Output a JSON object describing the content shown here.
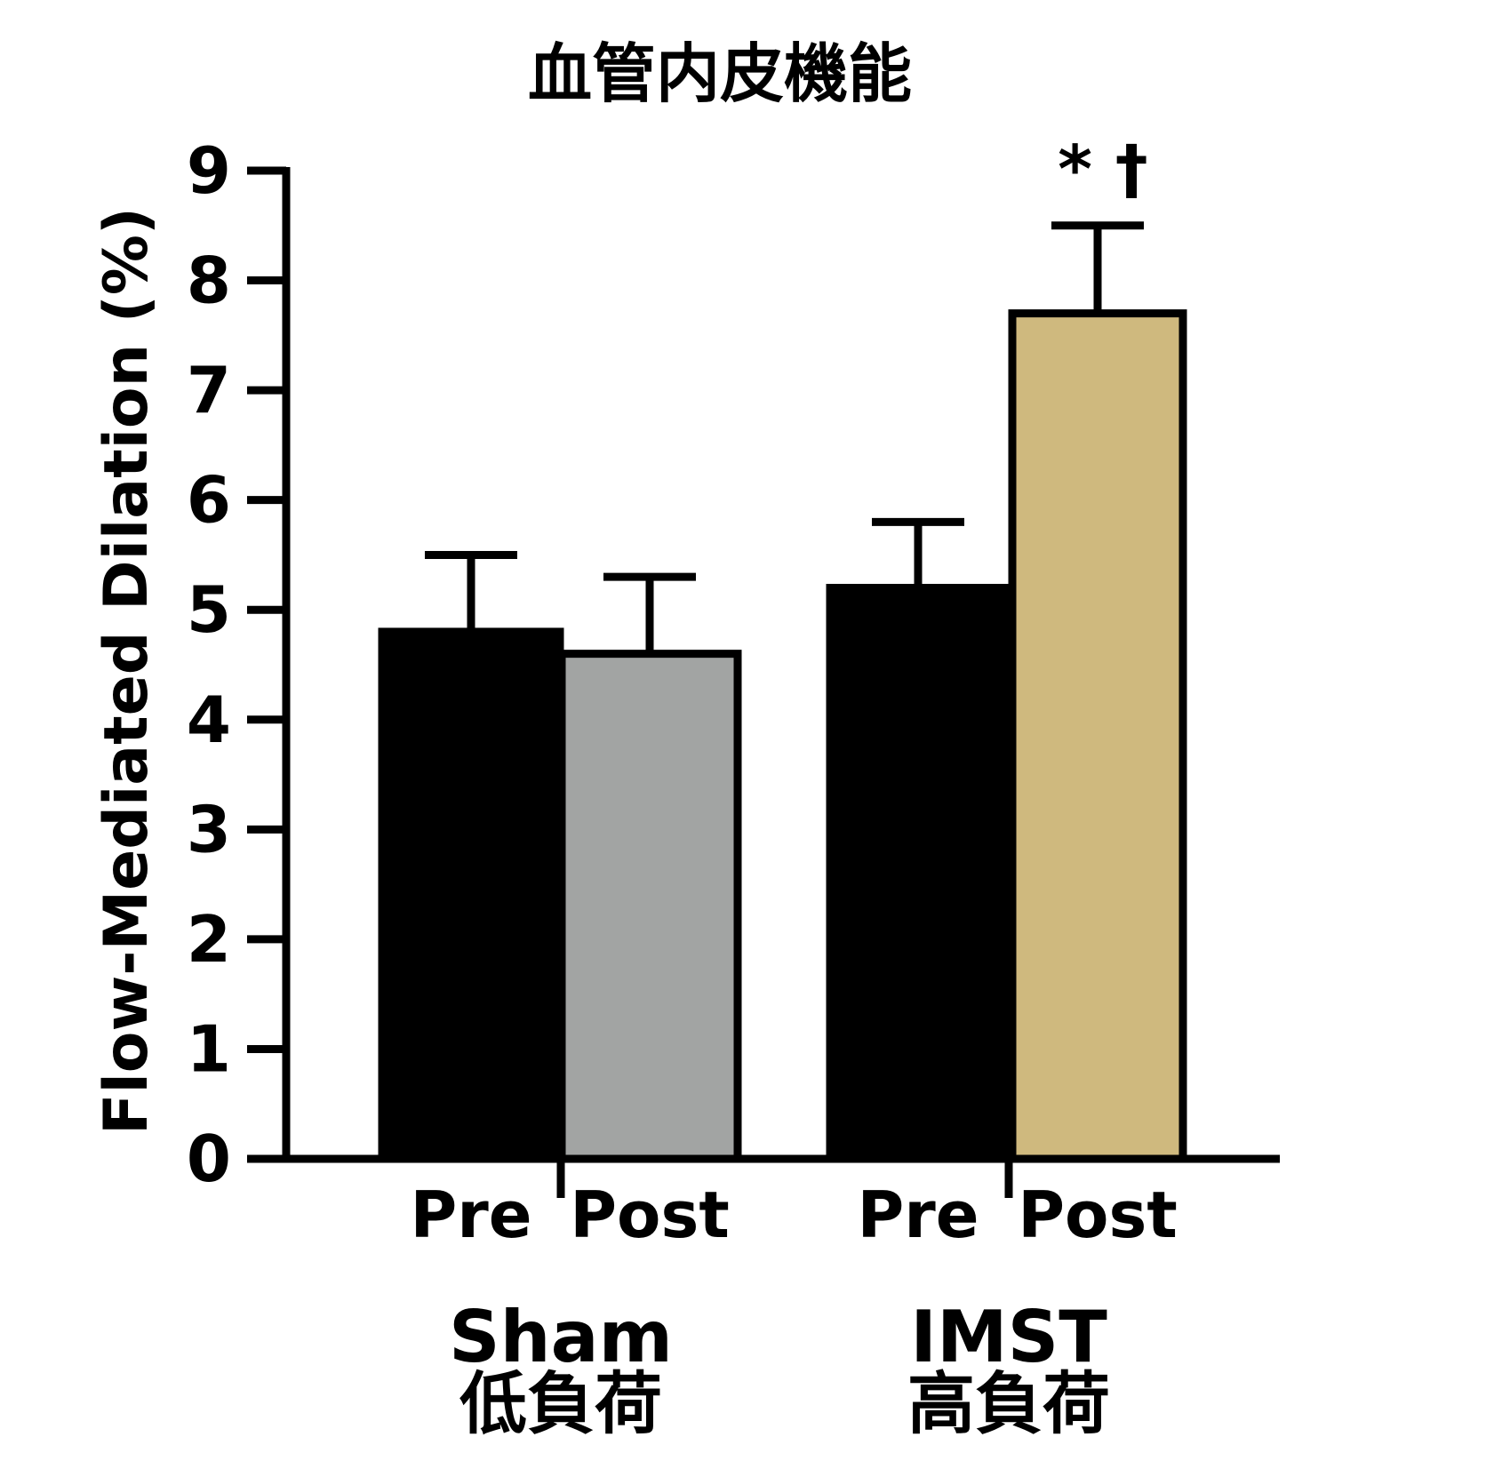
{
  "chart_data": {
    "type": "bar",
    "title": "血管内皮機能",
    "ylabel": "Flow-Mediated Dilation (%)",
    "ylim": [
      0,
      9
    ],
    "yticks": [
      "0",
      "1",
      "2",
      "3",
      "4",
      "5",
      "6",
      "7",
      "8",
      "9"
    ],
    "groups": [
      {
        "name": "Sham",
        "subtitle": "低負荷"
      },
      {
        "name": "IMST",
        "subtitle": "高負荷"
      }
    ],
    "bars": [
      {
        "group": 0,
        "label": "Pre",
        "value": 4.8,
        "error": 0.7,
        "color": "#000000"
      },
      {
        "group": 0,
        "label": "Post",
        "value": 4.6,
        "error": 0.7,
        "color": "#a2a4a3"
      },
      {
        "group": 1,
        "label": "Pre",
        "value": 5.2,
        "error": 0.6,
        "color": "#000000"
      },
      {
        "group": 1,
        "label": "Post",
        "value": 7.7,
        "error": 0.8,
        "color": "#cfb97e",
        "annotation": "* †"
      }
    ]
  }
}
